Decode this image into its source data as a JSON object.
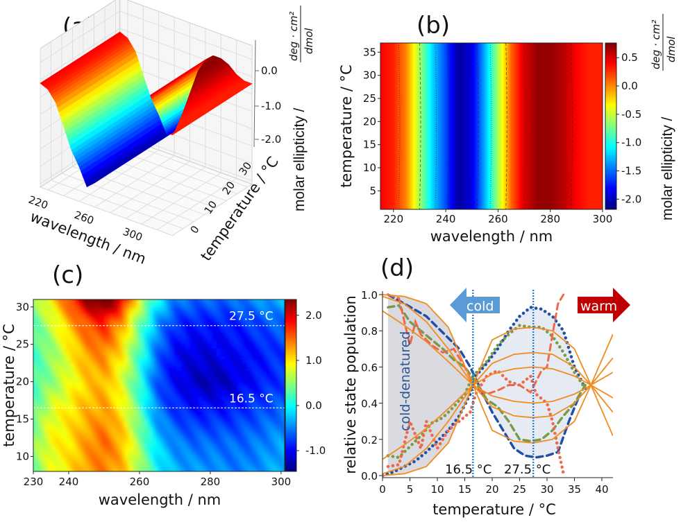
{
  "figure": {
    "panel_labels": [
      "(a)",
      "(b)",
      "(c)",
      "(d)"
    ]
  },
  "chart_data": [
    {
      "panel": "a",
      "type": "surface3d",
      "xlabel": "wavelength / nm",
      "ylabel": "temperature / °C",
      "zlabel": "molar ellipticity /",
      "zunit_numerator": "deg · cm²",
      "zunit_denominator": "dmol",
      "xlim": [
        215,
        300
      ],
      "ylim": [
        0,
        37
      ],
      "xticks": [
        "220",
        "260",
        "300"
      ],
      "yticks": [
        "0",
        "10",
        "20",
        "30"
      ],
      "zticks": [
        "0.0",
        "-1.0",
        "-2.0"
      ],
      "colormap": "jet",
      "wavelengths": [
        215,
        220,
        225,
        230,
        235,
        240,
        245,
        250,
        255,
        260,
        265,
        270,
        275,
        280,
        285,
        290,
        295,
        300
      ],
      "values": [
        0.4,
        0.3,
        0.0,
        -0.6,
        -1.2,
        -1.6,
        -2.1,
        -1.9,
        -1.3,
        -0.6,
        0.1,
        0.5,
        0.7,
        0.7,
        0.6,
        0.4,
        0.3,
        0.3
      ]
    },
    {
      "panel": "b",
      "type": "heatmap",
      "xlabel": "wavelength / nm",
      "ylabel": "temperature / °C",
      "colorbar_label": "molar ellipticity /",
      "colorbar_unit_numerator": "deg · cm²",
      "colorbar_unit_denominator": "dmol",
      "xlim": [
        215,
        300
      ],
      "ylim": [
        1,
        37
      ],
      "xticks": [
        "220",
        "240",
        "260",
        "280",
        "300"
      ],
      "yticks": [
        "5",
        "10",
        "15",
        "20",
        "25",
        "30",
        "35"
      ],
      "colorbar_range": [
        -2.18,
        0.76
      ],
      "colorbar_ticks": [
        "0.5",
        "0.0",
        "-0.5",
        "-1.0",
        "-1.5",
        "-2.0"
      ],
      "colormap": "jet",
      "contour_lines": "dashed",
      "wavelengths": [
        215,
        220,
        225,
        230,
        235,
        240,
        245,
        250,
        255,
        260,
        265,
        270,
        275,
        280,
        285,
        290,
        295,
        300
      ],
      "values": [
        0.4,
        0.3,
        0.0,
        -0.6,
        -1.2,
        -1.6,
        -2.1,
        -1.9,
        -1.3,
        -0.6,
        0.1,
        0.5,
        0.7,
        0.7,
        0.6,
        0.4,
        0.3,
        0.3
      ]
    },
    {
      "panel": "c",
      "type": "heatmap",
      "xlabel": "wavelength / nm",
      "ylabel": "temperature / °C",
      "xlim": [
        230,
        301
      ],
      "ylim": [
        8,
        31
      ],
      "xticks": [
        "230",
        "240",
        "260",
        "280",
        "300"
      ],
      "yticks": [
        "10",
        "15",
        "20",
        "25",
        "30"
      ],
      "colorbar_range": [
        -1.46,
        2.35
      ],
      "colorbar_ticks": [
        "2.0",
        "1.0",
        "0.0",
        "-1.0"
      ],
      "colormap": "jet",
      "hlines": [
        27.5,
        16.5
      ],
      "annotations": [
        "27.5 °C",
        "16.5 °C"
      ],
      "wavelengths": [
        230,
        235,
        240,
        245,
        250,
        255,
        260,
        265,
        270,
        275,
        280,
        285,
        290,
        295,
        300
      ],
      "temperatures": [
        8,
        12,
        16,
        20,
        24,
        28,
        31
      ],
      "values": [
        [
          0.4,
          0.8,
          1.0,
          1.3,
          1.4,
          1.2,
          0.6,
          0.0,
          -0.3,
          -0.4,
          -0.4,
          -0.5,
          -0.5,
          -0.4,
          -0.3
        ],
        [
          0.5,
          0.9,
          1.0,
          1.3,
          1.5,
          1.2,
          0.5,
          -0.2,
          -0.5,
          -0.6,
          -0.6,
          -0.6,
          -0.6,
          -0.5,
          -0.4
        ],
        [
          0.3,
          0.8,
          1.0,
          1.2,
          1.3,
          1.0,
          0.3,
          -0.5,
          -0.8,
          -0.9,
          -0.9,
          -0.9,
          -0.8,
          -0.7,
          -0.6
        ],
        [
          0.2,
          0.5,
          0.8,
          1.1,
          1.2,
          0.8,
          0.1,
          -0.7,
          -1.0,
          -1.2,
          -1.3,
          -1.2,
          -1.0,
          -0.9,
          -0.8
        ],
        [
          0.2,
          0.5,
          0.9,
          1.3,
          1.4,
          1.0,
          0.2,
          -0.6,
          -1.0,
          -1.1,
          -1.1,
          -1.0,
          -1.0,
          -0.9,
          -0.8
        ],
        [
          0.3,
          0.7,
          1.2,
          1.6,
          1.8,
          1.3,
          0.4,
          -0.4,
          -0.8,
          -0.9,
          -0.9,
          -0.9,
          -0.8,
          -0.7,
          -0.6
        ],
        [
          0.5,
          1.0,
          1.6,
          2.3,
          2.6,
          2.0,
          0.8,
          0.0,
          -0.5,
          -0.6,
          -0.6,
          -0.6,
          -0.5,
          -0.4,
          -0.3
        ]
      ]
    },
    {
      "panel": "d",
      "type": "line",
      "xlabel": "temperature / °C",
      "ylabel": "relative state population",
      "xlim": [
        0,
        42
      ],
      "ylim": [
        0,
        1.0
      ],
      "xticks": [
        "0",
        "5",
        "10",
        "15",
        "20",
        "25",
        "30",
        "35",
        "40"
      ],
      "yticks": [
        "0.0",
        "0.2",
        "0.4",
        "0.6",
        "0.8",
        "1.0"
      ],
      "vlines": [
        16.5,
        27.5
      ],
      "vline_labels": [
        "16.5 °C",
        "27.5 °C"
      ],
      "region_label": "cold-denatured",
      "arrows": {
        "cold": "cold",
        "warm": "warm"
      },
      "colors": {
        "fit": "#f28a1e",
        "blue": "#1f4fa8",
        "green": "#7a9a4a",
        "red": "#f0684a",
        "cold_arrow": "#5b9bd5",
        "warm_arrow": "#c00000",
        "shade": "#dfe3ec"
      },
      "fit_x": [
        0,
        4,
        8,
        12,
        16.5,
        20,
        24,
        27.5,
        31,
        35,
        38,
        42
      ],
      "fits": [
        [
          1.0,
          0.99,
          0.95,
          0.82,
          0.5,
          0.25,
          0.19,
          0.18,
          0.2,
          0.3,
          0.5,
          0.78
        ],
        [
          0.0,
          0.01,
          0.05,
          0.18,
          0.5,
          0.75,
          0.81,
          0.82,
          0.8,
          0.7,
          0.5,
          0.22
        ],
        [
          0.99,
          0.95,
          0.85,
          0.7,
          0.5,
          0.38,
          0.33,
          0.32,
          0.33,
          0.4,
          0.5,
          0.65
        ],
        [
          0.01,
          0.05,
          0.15,
          0.3,
          0.5,
          0.62,
          0.67,
          0.68,
          0.67,
          0.6,
          0.5,
          0.35
        ],
        [
          0.91,
          0.83,
          0.74,
          0.63,
          0.5,
          0.44,
          0.41,
          0.4,
          0.41,
          0.45,
          0.5,
          0.57
        ],
        [
          0.09,
          0.17,
          0.26,
          0.37,
          0.5,
          0.56,
          0.59,
          0.6,
          0.59,
          0.55,
          0.5,
          0.43
        ]
      ],
      "series": [
        {
          "style": "blue-dotted",
          "x": [
            0,
            2,
            4,
            6,
            8,
            10,
            12,
            14,
            16,
            17,
            19,
            21,
            23,
            25,
            27,
            29,
            31,
            33,
            35,
            37
          ],
          "y": [
            0.0,
            0.02,
            0.05,
            0.08,
            0.13,
            0.19,
            0.25,
            0.33,
            0.45,
            0.55,
            0.62,
            0.7,
            0.8,
            0.88,
            0.93,
            0.92,
            0.88,
            0.8,
            0.6,
            0.48
          ]
        },
        {
          "style": "blue-dashed",
          "x": [
            1,
            4,
            8,
            10,
            12,
            14,
            16,
            18,
            20,
            22,
            24,
            26,
            28,
            30,
            32,
            34,
            36
          ],
          "y": [
            1.0,
            0.95,
            0.88,
            0.82,
            0.76,
            0.7,
            0.6,
            0.47,
            0.35,
            0.25,
            0.15,
            0.11,
            0.1,
            0.11,
            0.13,
            0.3,
            0.45
          ]
        },
        {
          "style": "green-dotted",
          "x": [
            1,
            3,
            5,
            7,
            9,
            11,
            13,
            15,
            16.5,
            19,
            21,
            23,
            25,
            27,
            29,
            31,
            33,
            35,
            37
          ],
          "y": [
            0.11,
            0.1,
            0.16,
            0.22,
            0.29,
            0.32,
            0.38,
            0.45,
            0.55,
            0.63,
            0.72,
            0.78,
            0.83,
            0.82,
            0.82,
            0.77,
            0.68,
            0.57,
            0.48
          ]
        },
        {
          "style": "green-dashed",
          "x": [
            1,
            3,
            5,
            7,
            9,
            11,
            13,
            15,
            17,
            19,
            21,
            23,
            25,
            27,
            29,
            31,
            33,
            35,
            37
          ],
          "y": [
            0.93,
            0.94,
            0.85,
            0.8,
            0.75,
            0.7,
            0.64,
            0.6,
            0.52,
            0.42,
            0.38,
            0.3,
            0.2,
            0.19,
            0.2,
            0.25,
            0.33,
            0.4,
            0.5
          ]
        },
        {
          "style": "red-dotted",
          "x": [
            1,
            3,
            5,
            7,
            8,
            10,
            12,
            14,
            16,
            17,
            19,
            21,
            23,
            25,
            27,
            28,
            30,
            31,
            32,
            33
          ],
          "y": [
            0.05,
            0.06,
            0.3,
            0.15,
            0.3,
            0.15,
            0.25,
            0.3,
            0.35,
            0.45,
            0.55,
            0.58,
            0.52,
            0.5,
            0.55,
            0.45,
            0.4,
            0.3,
            0.15,
            0.01
          ]
        },
        {
          "style": "red-dashed",
          "x": [
            1,
            3,
            5,
            6,
            7,
            9,
            11,
            13,
            15,
            17,
            19,
            21,
            23,
            25,
            27,
            29,
            30,
            31,
            32,
            33
          ],
          "y": [
            1.0,
            0.98,
            0.72,
            0.85,
            0.78,
            0.72,
            0.68,
            0.7,
            0.6,
            0.48,
            0.45,
            0.47,
            0.5,
            0.5,
            0.46,
            0.58,
            0.6,
            0.78,
            0.95,
            1.0
          ]
        }
      ]
    }
  ]
}
